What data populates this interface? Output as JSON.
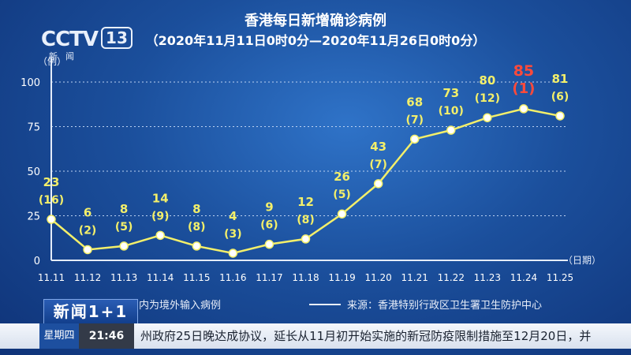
{
  "logo": {
    "brand": "CCTV",
    "channel": "13",
    "sub": "新闻"
  },
  "chart_data": {
    "type": "line",
    "title": "香港每日新增确诊病例",
    "subtitle": "（2020年11月11日0时0分—2020年11月26日0时0分）",
    "ylabel": "（例）",
    "xlabel": "（日期）",
    "ylim": [
      0,
      100
    ],
    "yticks": [
      "0",
      "25",
      "50",
      "75",
      "100"
    ],
    "grid": true,
    "categories": [
      "11.11",
      "11.12",
      "11.13",
      "11.14",
      "11.15",
      "11.16",
      "11.17",
      "11.18",
      "11.19",
      "11.20",
      "11.21",
      "11.22",
      "11.23",
      "11.24",
      "11.25"
    ],
    "series": [
      {
        "values": [
          23,
          6,
          8,
          14,
          8,
          4,
          9,
          12,
          26,
          43,
          68,
          73,
          80,
          85,
          81
        ],
        "imported": [
          16,
          2,
          5,
          9,
          8,
          3,
          6,
          8,
          5,
          7,
          7,
          10,
          12,
          1,
          6
        ],
        "color": "#f3ef6a",
        "highlight_color": "#ff4a3a",
        "highlight_category": "11.24"
      }
    ]
  },
  "legend": {
    "note": "内为境外输入病例",
    "source": "来源：香港特别行政区卫生署卫生防护中心"
  },
  "newsbox": "新闻1+1",
  "ticker": {
    "day": "星期四",
    "time": "21:46",
    "text": "州政府25日晚达成协议，延长从11月初开始实施的新冠防疫限制措施至12月20日，并"
  }
}
